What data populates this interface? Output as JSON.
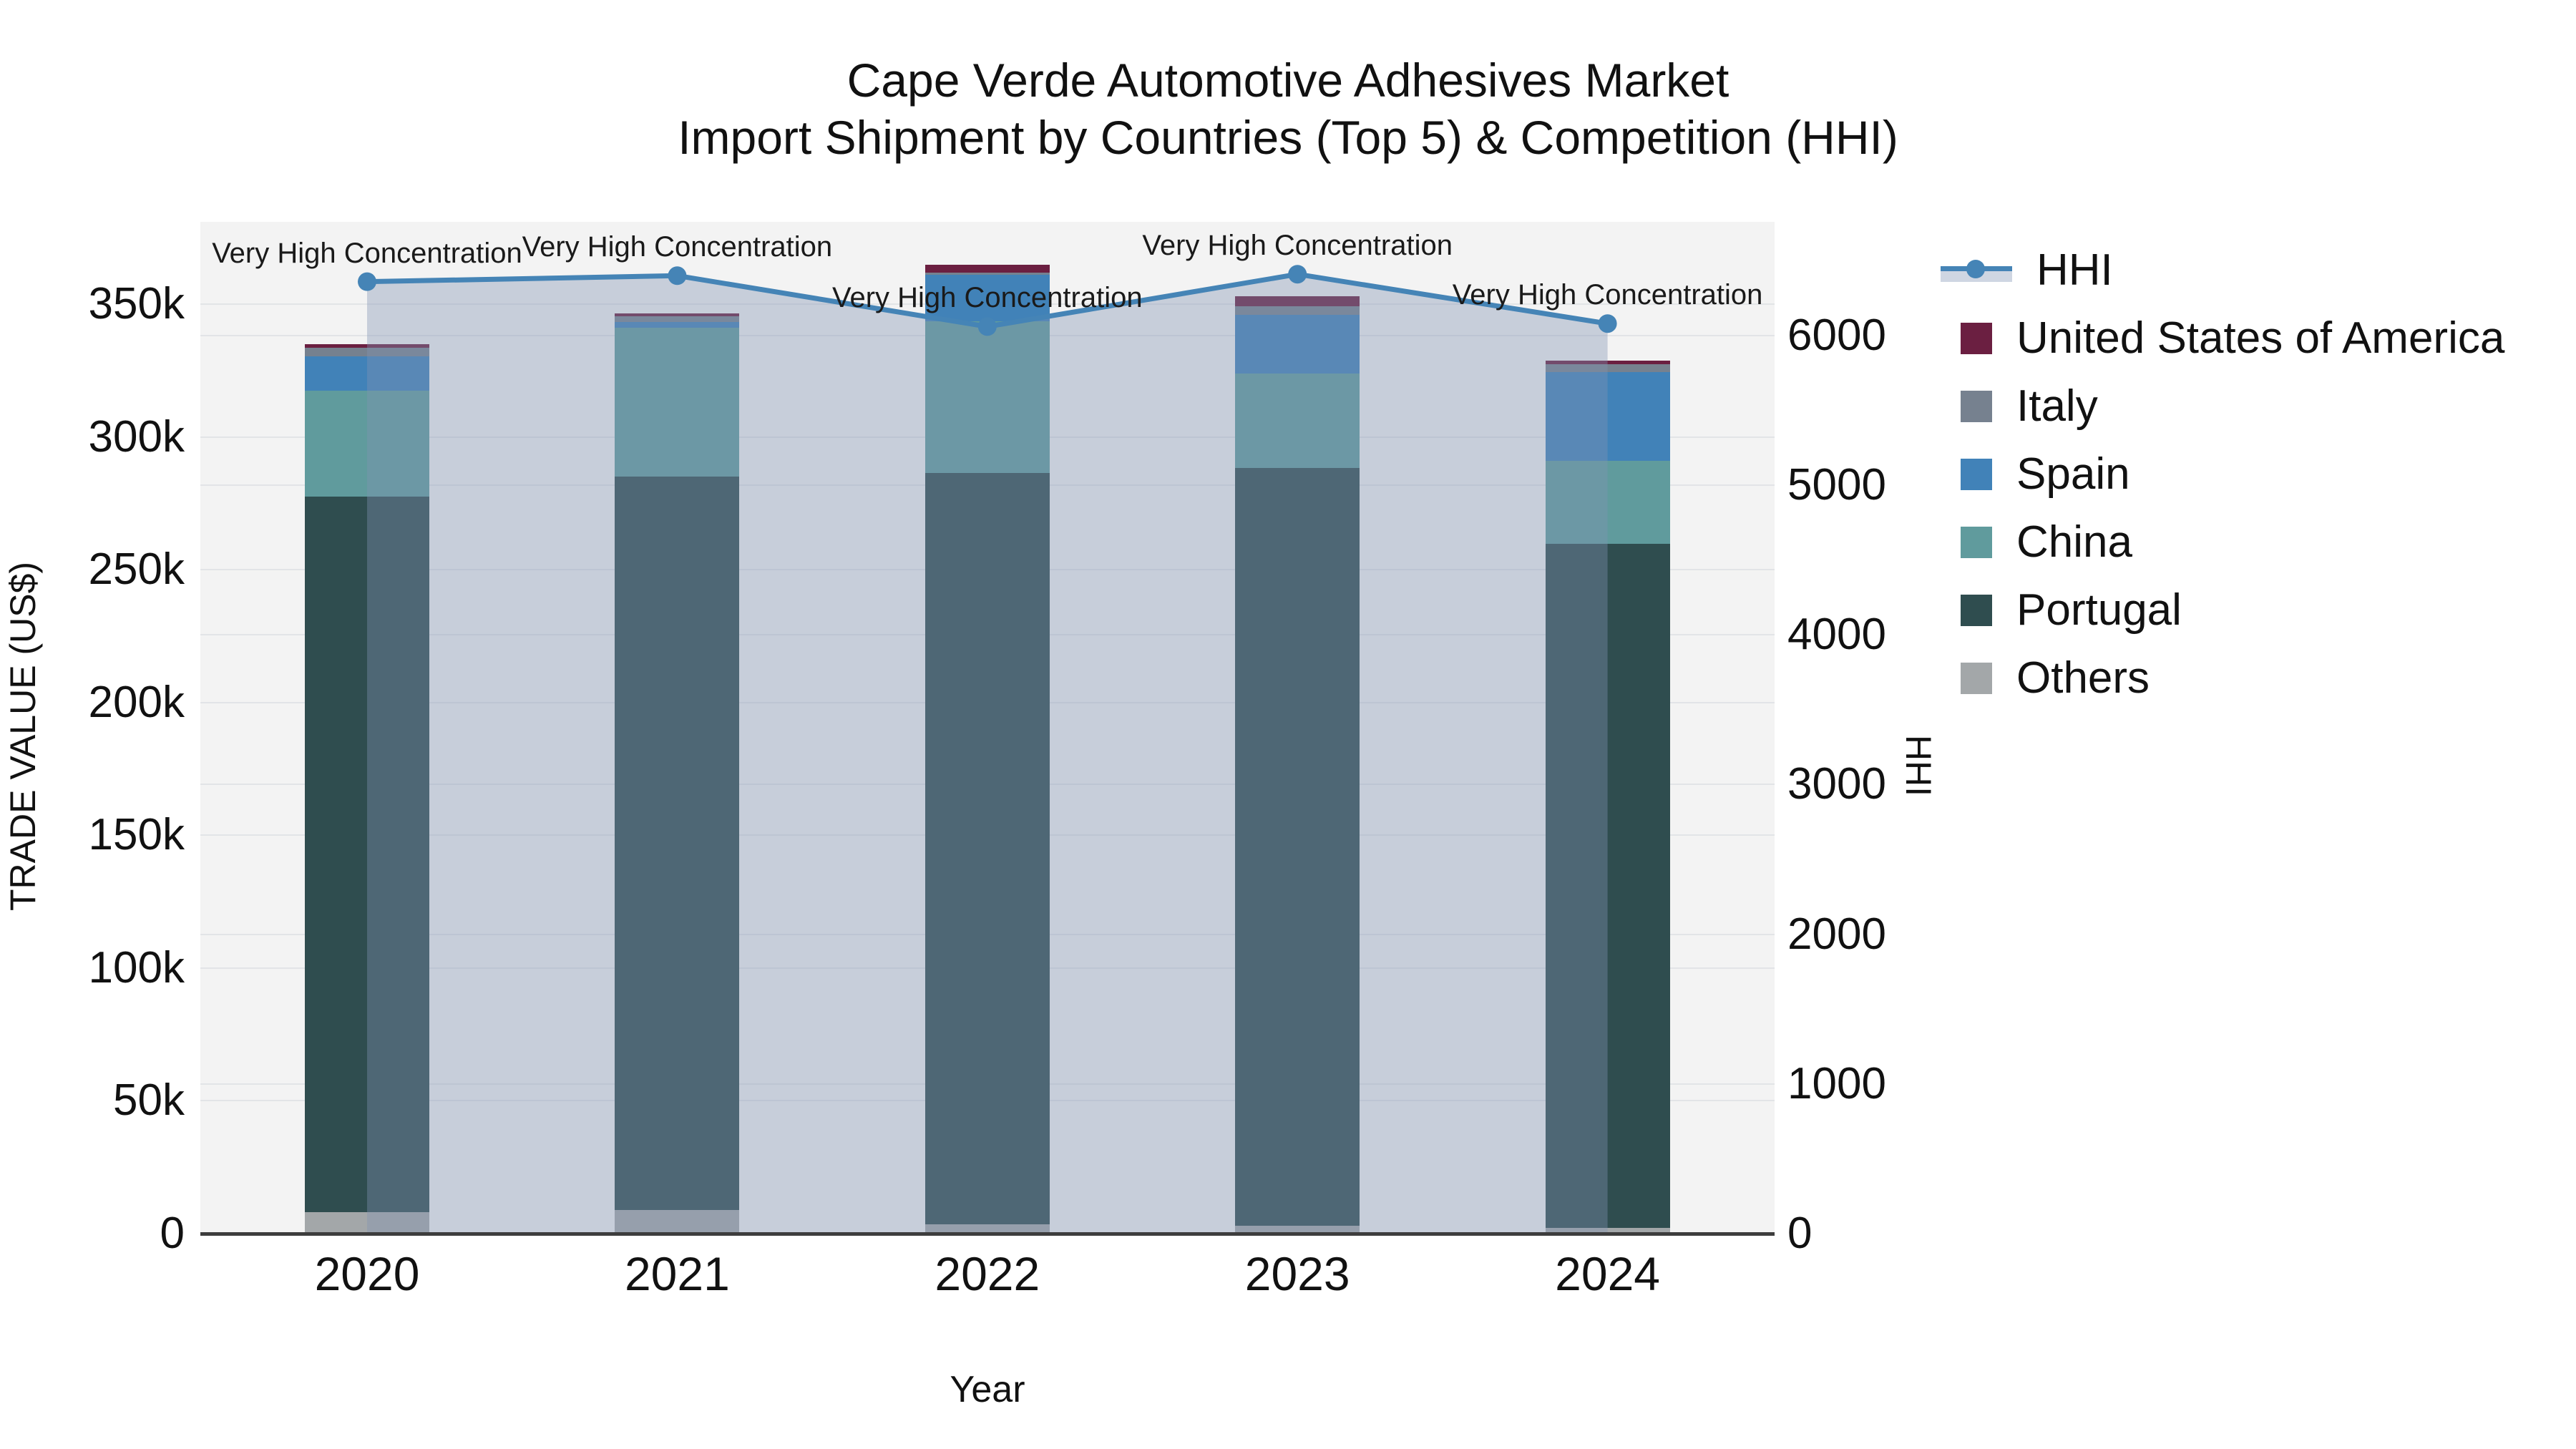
{
  "title": {
    "line1": "Cape Verde Automotive Adhesives Market",
    "line2": "Import Shipment by Countries (Top 5) & Competition (HHI)"
  },
  "colors": {
    "hhi_line": "#4584b6",
    "hhi_fill": "rgba(129,147,179,0.38)",
    "usa": "#6b1f41",
    "italy": "#76818f",
    "spain": "#4182b8",
    "china": "#609b9d",
    "portugal": "#2f4d4f",
    "others": "#a3a7a9",
    "plot_bg": "#f3f3f3",
    "gridline": "#e2e4e7",
    "axis_line": "#3d3d3d"
  },
  "legend": {
    "items": [
      {
        "label": "HHI",
        "type": "line"
      },
      {
        "label": "United States of America",
        "type": "swatch",
        "color": "#6b1f41"
      },
      {
        "label": "Italy",
        "type": "swatch",
        "color": "#76818f"
      },
      {
        "label": "Spain",
        "type": "swatch",
        "color": "#4182b8"
      },
      {
        "label": "China",
        "type": "swatch",
        "color": "#609b9d"
      },
      {
        "label": "Portugal",
        "type": "swatch",
        "color": "#2f4d4f"
      },
      {
        "label": "Others",
        "type": "swatch",
        "color": "#a3a7a9"
      }
    ]
  },
  "chart_data": {
    "type": "bar+line",
    "title": "Cape Verde Automotive Adhesives Market — Import Shipment by Countries (Top 5) & Competition (HHI)",
    "categories": [
      "2020",
      "2021",
      "2022",
      "2023",
      "2024"
    ],
    "series": [
      {
        "name": "Others",
        "color": "#a3a7a9",
        "values": [
          8100,
          9000,
          3500,
          3000,
          2200
        ]
      },
      {
        "name": "Portugal",
        "color": "#2f4d4f",
        "values": [
          269300,
          276200,
          283000,
          285400,
          257500
        ]
      },
      {
        "name": "China",
        "color": "#609b9d",
        "values": [
          40100,
          55900,
          57100,
          35400,
          31400
        ]
      },
      {
        "name": "Spain",
        "color": "#4182b8",
        "values": [
          12800,
          2300,
          17500,
          22200,
          33400
        ]
      },
      {
        "name": "Italy",
        "color": "#76818f",
        "values": [
          3300,
          2000,
          900,
          3200,
          3000
        ]
      },
      {
        "name": "United States of America",
        "color": "#6b1f41",
        "values": [
          1200,
          1200,
          2800,
          3800,
          1200
        ]
      }
    ],
    "line": {
      "name": "HHI",
      "color": "#4584b6",
      "values": [
        6360,
        6400,
        6060,
        6410,
        6080
      ],
      "has_area_fill": true
    },
    "left_axis": {
      "label": "TRADE VALUE (US$)",
      "tick_labels": [
        "0",
        "50k",
        "100k",
        "150k",
        "200k",
        "250k",
        "300k",
        "350k"
      ],
      "tick_values": [
        0,
        50000,
        100000,
        150000,
        200000,
        250000,
        300000,
        350000
      ],
      "range": [
        0,
        381000
      ],
      "grid": true
    },
    "right_axis": {
      "label": "HHI",
      "tick_labels": [
        "0",
        "1000",
        "2000",
        "3000",
        "4000",
        "5000",
        "6000"
      ],
      "tick_values": [
        0,
        1000,
        2000,
        3000,
        4000,
        5000,
        6000
      ],
      "range": [
        0,
        6760
      ],
      "grid": true
    },
    "x_axis": {
      "label": "Year"
    },
    "annotations": [
      {
        "year": "2020",
        "text": "Very High Concentration"
      },
      {
        "year": "2021",
        "text": "Very High Concentration"
      },
      {
        "year": "2022",
        "text": "Very High Concentration"
      },
      {
        "year": "2023",
        "text": "Very High Concentration"
      },
      {
        "year": "2024",
        "text": "Very High Concentration"
      }
    ],
    "legend_position": "top-right",
    "notes": "Stacked bars bottom-to-top: Others, Portugal, China, Spain, Italy, USA. HHI line on secondary axis with light blue-gray area fill from 2020 to 2024 bar centers."
  }
}
